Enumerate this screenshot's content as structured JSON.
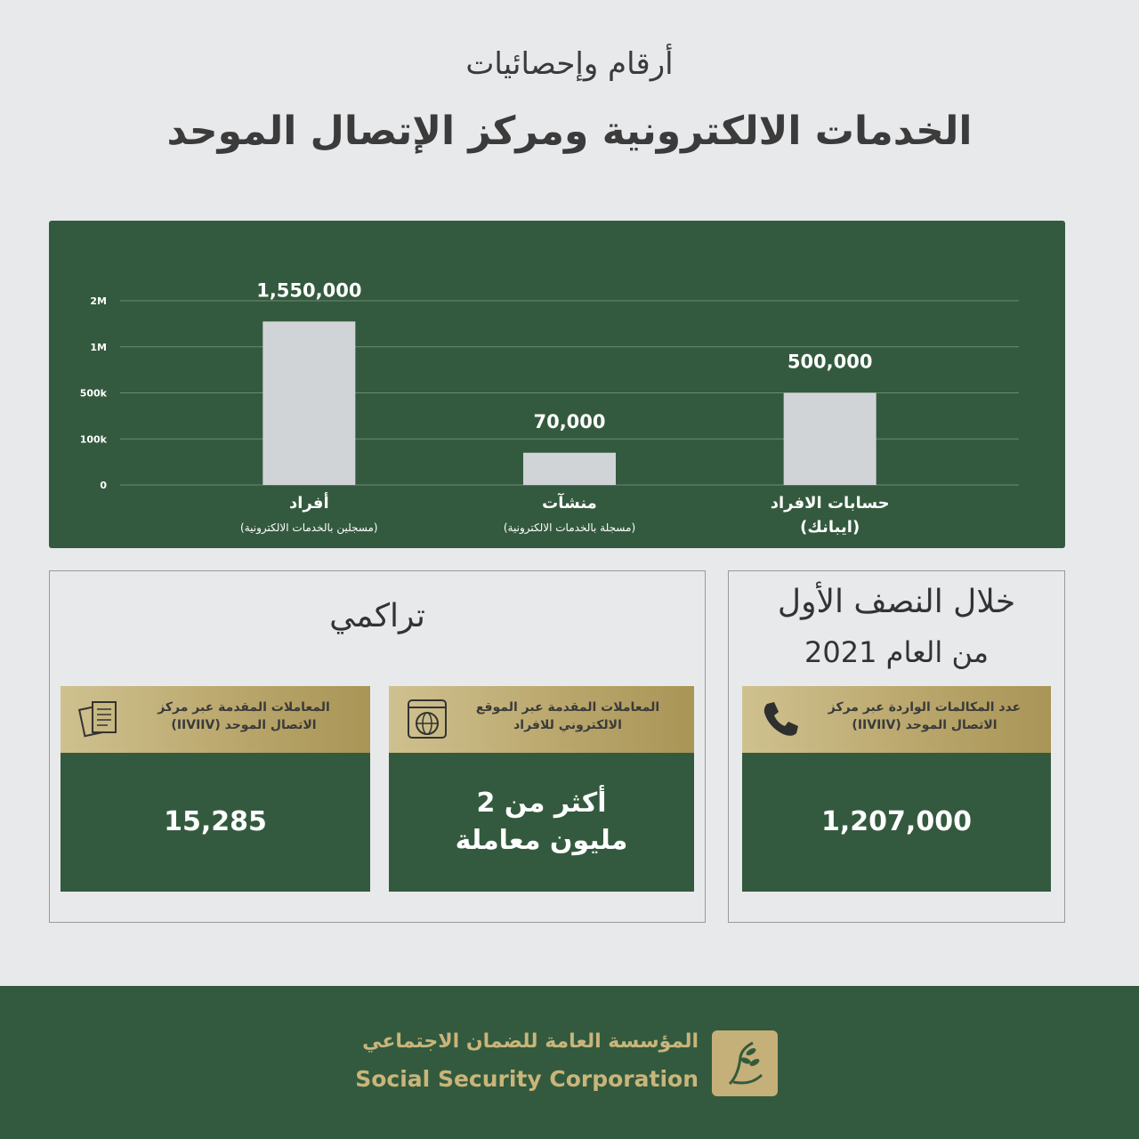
{
  "header": {
    "subtitle": "أرقام وإحصائيات",
    "title": "الخدمات الالكترونية ومركز الإتصال الموحد"
  },
  "chart_data": {
    "type": "bar",
    "categories": [
      "أفراد",
      "منشآت",
      "حسابات الافراد"
    ],
    "category_notes": [
      "(مسجلين بالخدمات الالكترونية)",
      "(مسجلة بالخدمات الالكترونية)",
      "(ايبانك)"
    ],
    "values": [
      1550000,
      70000,
      500000
    ],
    "value_labels": [
      "1,550,000",
      "70,000",
      "500,000"
    ],
    "color": "#d1d4d7",
    "ylim": [
      0,
      2000000
    ],
    "yticks": [
      0,
      {
        "value": 100000,
        "label": "100k"
      },
      {
        "value": 500000,
        "label": "500k"
      },
      {
        "value": 1000000,
        "label": "1M"
      },
      {
        "value": 2000000,
        "label": "2M"
      }
    ],
    "grid": true
  },
  "cumulative": {
    "title": "تراكمي",
    "cards": [
      {
        "label": "المعاملات المقدمة عبر الموقع الالكتروني للافراد",
        "value": "أكثر من 2 مليون معاملة"
      },
      {
        "label": "المعاملات المقدمة عبر مركز الاتصال الموحد (IIVIIV)",
        "value": "15,285"
      }
    ]
  },
  "half_year": {
    "title_line1": "خلال النصف الأول",
    "title_line2": "من العام 2021",
    "card": {
      "label": "عدد المكالمات الواردة عبر مركز الاتصال الموحد (IIVIIV)",
      "value": "1,207,000"
    }
  },
  "footer": {
    "name_ar": "المؤسسة العامة للضمان الاجتماعي",
    "name_en": "Social Security Corporation"
  }
}
